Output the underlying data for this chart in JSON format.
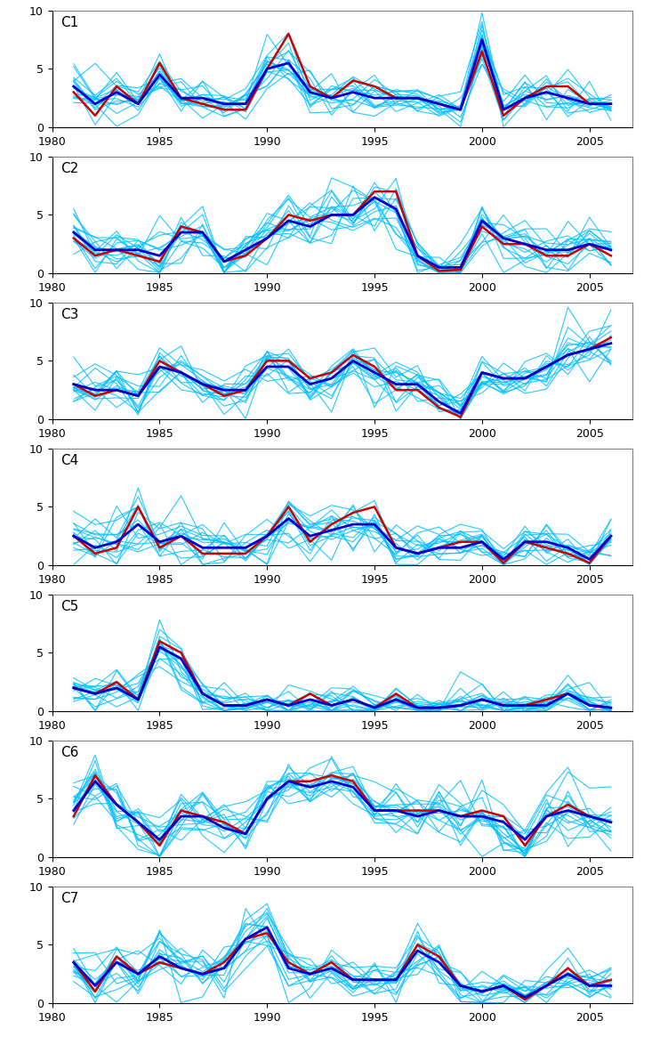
{
  "years": [
    1981,
    1982,
    1983,
    1984,
    1985,
    1986,
    1987,
    1988,
    1989,
    1990,
    1991,
    1992,
    1993,
    1994,
    1995,
    1996,
    1997,
    1998,
    1999,
    2000,
    2001,
    2002,
    2003,
    2004,
    2005,
    2006
  ],
  "n_years": 26,
  "n_ensemble": 15,
  "panels": [
    "C1",
    "C2",
    "C3",
    "C4",
    "C5",
    "C6",
    "C7"
  ],
  "obs": {
    "C1": [
      3.0,
      1.0,
      3.5,
      2.0,
      5.5,
      2.5,
      2.0,
      1.5,
      1.5,
      5.0,
      8.0,
      3.5,
      2.5,
      4.0,
      3.5,
      2.5,
      2.5,
      2.0,
      1.5,
      6.5,
      1.0,
      2.5,
      3.5,
      3.5,
      2.0,
      2.0
    ],
    "C2": [
      3.0,
      1.5,
      2.0,
      1.5,
      1.0,
      4.0,
      3.5,
      1.0,
      1.5,
      3.0,
      5.0,
      4.5,
      5.0,
      5.0,
      7.0,
      7.0,
      1.5,
      0.2,
      0.3,
      4.0,
      2.5,
      2.5,
      1.5,
      1.5,
      2.5,
      1.5
    ],
    "C3": [
      3.0,
      2.0,
      2.5,
      2.0,
      5.0,
      4.0,
      3.0,
      2.0,
      2.5,
      5.0,
      5.0,
      3.5,
      4.0,
      5.5,
      4.5,
      2.5,
      2.5,
      1.0,
      0.2,
      4.0,
      3.5,
      3.5,
      4.5,
      5.5,
      6.0,
      7.0
    ],
    "C4": [
      2.5,
      1.0,
      1.5,
      5.0,
      1.5,
      2.5,
      1.0,
      1.0,
      1.0,
      2.5,
      5.0,
      2.0,
      3.5,
      4.5,
      5.0,
      1.5,
      1.0,
      1.5,
      2.0,
      2.0,
      0.2,
      2.0,
      1.5,
      1.0,
      0.2,
      2.5
    ],
    "C5": [
      2.0,
      1.5,
      2.5,
      1.0,
      6.0,
      5.0,
      1.5,
      0.5,
      0.5,
      1.0,
      0.5,
      1.5,
      0.5,
      1.0,
      0.3,
      1.5,
      0.3,
      0.3,
      0.5,
      1.0,
      0.5,
      0.5,
      1.0,
      1.5,
      0.5,
      0.3
    ],
    "C6": [
      3.5,
      7.0,
      4.5,
      3.0,
      1.0,
      4.0,
      3.5,
      3.0,
      2.0,
      5.0,
      6.5,
      6.5,
      7.0,
      6.5,
      4.0,
      4.0,
      4.0,
      4.0,
      3.5,
      4.0,
      3.5,
      1.0,
      3.5,
      4.5,
      3.5,
      3.0
    ],
    "C7": [
      3.5,
      1.0,
      4.0,
      2.5,
      3.5,
      3.0,
      2.5,
      3.5,
      5.5,
      6.0,
      3.5,
      2.5,
      3.5,
      2.0,
      2.0,
      2.0,
      5.0,
      4.0,
      1.5,
      1.0,
      1.5,
      0.3,
      1.5,
      3.0,
      1.5,
      2.0
    ]
  },
  "ens_mean": {
    "C1": [
      3.5,
      2.0,
      3.0,
      2.0,
      4.5,
      2.5,
      2.5,
      2.0,
      2.0,
      5.0,
      5.5,
      3.0,
      2.5,
      3.0,
      2.5,
      2.5,
      2.5,
      2.0,
      1.5,
      7.5,
      1.5,
      2.5,
      3.0,
      2.5,
      2.0,
      2.0
    ],
    "C2": [
      3.5,
      2.0,
      2.0,
      2.0,
      1.5,
      3.5,
      3.5,
      1.0,
      2.0,
      3.0,
      4.5,
      4.0,
      5.0,
      5.0,
      6.5,
      5.5,
      1.5,
      0.5,
      0.5,
      4.5,
      3.0,
      2.5,
      2.0,
      2.0,
      2.5,
      2.0
    ],
    "C3": [
      3.0,
      2.5,
      2.5,
      2.0,
      4.5,
      4.0,
      3.0,
      2.5,
      2.5,
      4.5,
      4.5,
      3.0,
      3.5,
      5.0,
      4.0,
      3.0,
      3.0,
      1.5,
      0.5,
      4.0,
      3.5,
      3.5,
      4.5,
      5.5,
      6.0,
      6.5
    ],
    "C4": [
      2.5,
      1.5,
      2.0,
      3.5,
      2.0,
      2.5,
      1.5,
      1.5,
      1.5,
      2.5,
      4.0,
      2.5,
      3.0,
      3.5,
      3.5,
      1.5,
      1.0,
      1.5,
      1.5,
      2.0,
      0.5,
      2.0,
      2.0,
      1.5,
      0.5,
      2.5
    ],
    "C5": [
      2.0,
      1.5,
      2.0,
      1.0,
      5.5,
      4.5,
      1.5,
      0.5,
      0.5,
      1.0,
      0.5,
      1.0,
      0.5,
      1.0,
      0.3,
      1.0,
      0.3,
      0.3,
      0.5,
      1.0,
      0.5,
      0.5,
      0.5,
      1.5,
      0.5,
      0.3
    ],
    "C6": [
      4.0,
      6.5,
      4.5,
      3.0,
      1.5,
      3.5,
      3.5,
      2.5,
      2.0,
      5.0,
      6.5,
      6.0,
      6.5,
      6.0,
      4.0,
      4.0,
      3.5,
      4.0,
      3.5,
      3.5,
      3.0,
      1.5,
      3.5,
      4.0,
      3.5,
      3.0
    ],
    "C7": [
      3.5,
      1.5,
      3.5,
      2.5,
      4.0,
      3.0,
      2.5,
      3.0,
      5.5,
      6.5,
      3.0,
      2.5,
      3.0,
      2.0,
      2.0,
      2.0,
      4.5,
      3.5,
      1.5,
      1.0,
      1.5,
      0.5,
      1.5,
      2.5,
      1.5,
      1.5
    ]
  },
  "ens_spread": {
    "C1": [
      1.5,
      1.5,
      1.5,
      1.5,
      2.0,
      1.5,
      1.5,
      1.2,
      1.5,
      2.0,
      2.0,
      1.5,
      1.5,
      1.5,
      1.5,
      1.2,
      1.5,
      1.2,
      1.2,
      2.5,
      2.0,
      1.5,
      1.5,
      1.5,
      1.5,
      1.2
    ],
    "C2": [
      2.0,
      1.5,
      1.5,
      1.5,
      2.0,
      2.0,
      2.0,
      1.5,
      1.5,
      2.0,
      2.0,
      2.0,
      2.0,
      2.0,
      2.5,
      2.5,
      2.0,
      1.5,
      1.5,
      2.0,
      2.0,
      1.5,
      2.0,
      2.0,
      2.0,
      1.5
    ],
    "C3": [
      1.5,
      1.5,
      2.0,
      1.5,
      2.0,
      2.0,
      1.5,
      1.5,
      2.0,
      2.0,
      2.0,
      1.5,
      1.5,
      1.5,
      2.0,
      2.0,
      2.0,
      1.5,
      1.5,
      2.0,
      2.0,
      2.0,
      2.0,
      2.0,
      2.0,
      2.0
    ],
    "C4": [
      2.5,
      2.0,
      2.0,
      3.0,
      2.0,
      2.0,
      1.5,
      1.5,
      1.5,
      2.0,
      2.5,
      2.0,
      2.0,
      2.0,
      2.0,
      1.5,
      1.5,
      1.5,
      1.5,
      1.5,
      1.5,
      1.5,
      1.5,
      1.5,
      1.5,
      1.5
    ],
    "C5": [
      1.2,
      1.5,
      1.5,
      1.5,
      2.5,
      2.5,
      1.5,
      1.0,
      1.0,
      1.2,
      1.2,
      1.2,
      1.2,
      1.2,
      1.0,
      1.2,
      1.0,
      1.0,
      1.0,
      1.2,
      1.0,
      1.0,
      1.0,
      1.2,
      1.0,
      1.0
    ],
    "C6": [
      2.0,
      2.0,
      2.0,
      2.0,
      2.0,
      2.0,
      2.0,
      2.0,
      2.0,
      2.0,
      2.0,
      2.0,
      2.0,
      2.0,
      2.0,
      2.0,
      2.0,
      2.0,
      2.0,
      2.0,
      2.0,
      2.0,
      2.0,
      2.0,
      2.0,
      2.0
    ],
    "C7": [
      1.5,
      2.0,
      2.0,
      2.0,
      2.0,
      2.0,
      1.5,
      2.0,
      2.0,
      2.0,
      2.0,
      1.5,
      1.5,
      1.5,
      1.5,
      1.5,
      2.0,
      2.0,
      1.5,
      1.2,
      1.2,
      1.2,
      1.5,
      1.5,
      1.2,
      1.2
    ]
  },
  "panel_seeds": {
    "C1": 42,
    "C2": 7,
    "C3": 13,
    "C4": 99,
    "C5": 55,
    "C6": 21,
    "C7": 88
  },
  "light_blue": "#00BFFF",
  "dark_blue": "#0000CC",
  "obs_red": "#CC0000",
  "bg_color": "#FFFFFF",
  "ylim": [
    0,
    10
  ],
  "yticks": [
    0,
    5,
    10
  ],
  "xlim": [
    1980,
    2007
  ],
  "xticks": [
    1980,
    1985,
    1990,
    1995,
    2000,
    2005
  ],
  "figsize": [
    7.33,
    11.74
  ],
  "dpi": 100
}
